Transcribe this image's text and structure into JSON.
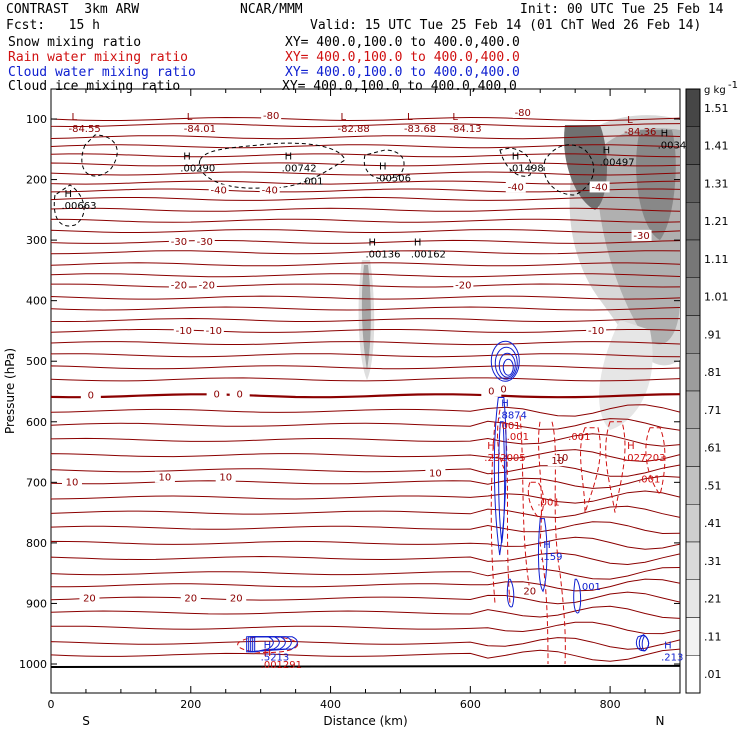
{
  "header": {
    "left": [
      "CONTRAST  3km ARW",
      "Fcst:   15 h"
    ],
    "center": "NCAR/MMM",
    "init": "Init: 00 UTC Tue 25 Feb 14",
    "valid": "Valid: 15 UTC Tue 25 Feb 14 (01 ChT Wed 26 Feb 14)"
  },
  "fields": [
    {
      "name": "Snow mixing ratio",
      "xy": "XY= 400.0,100.0 to 400.0,400.0",
      "color": "#000000"
    },
    {
      "name": "Rain water mixing ratio",
      "xy": "XY= 400.0,100.0 to 400.0,400.0",
      "color": "#d01010"
    },
    {
      "name": "Cloud water mixing ratio",
      "xy": "XY= 400.0,100.0 to 400.0,400.0",
      "color": "#1020d0"
    },
    {
      "name": "Cloud ice mixing ratio",
      "xy": "XY= 400.0,100.0 to 400.0,400.0",
      "color": "#000000"
    }
  ],
  "colorbar": {
    "unit": "g kg",
    "unit_sup": "-1",
    "levels": [
      "1.51",
      "1.41",
      "1.31",
      "1.21",
      "1.11",
      "1.01",
      ".91",
      ".81",
      ".71",
      ".61",
      ".51",
      ".41",
      ".31",
      ".21",
      ".11",
      ".01"
    ]
  },
  "chart_data": {
    "type": "cross-section",
    "xlabel": "Distance (km)",
    "ylabel": "Pressure (hPa)",
    "xlim": [
      0,
      900
    ],
    "ylim": [
      1050,
      50
    ],
    "x_ticks": [
      0,
      200,
      400,
      600,
      800
    ],
    "y_ticks": [
      100,
      200,
      300,
      400,
      500,
      600,
      700,
      800,
      900,
      1000
    ],
    "left_end": "S",
    "right_end": "N",
    "temperature_isotherms": [
      {
        "temp": "-80",
        "label_x": 315,
        "p": 95
      },
      {
        "temp": "-80",
        "label_x": 675,
        "p": 90
      },
      {
        "temp": "-40",
        "label_x": 240,
        "p": 218
      },
      {
        "temp": "-40",
        "label_x": 313,
        "p": 218
      },
      {
        "temp": "-40",
        "label_x": 665,
        "p": 213
      },
      {
        "temp": "-40",
        "label_x": 785,
        "p": 213
      },
      {
        "temp": "-30",
        "label_x": 183,
        "p": 303
      },
      {
        "temp": "-30",
        "label_x": 220,
        "p": 303
      },
      {
        "temp": "-30",
        "label_x": 845,
        "p": 293
      },
      {
        "temp": "-20",
        "label_x": 183,
        "p": 375
      },
      {
        "temp": "-20",
        "label_x": 223,
        "p": 375
      },
      {
        "temp": "-20",
        "label_x": 590,
        "p": 375
      },
      {
        "temp": "-10",
        "label_x": 190,
        "p": 450
      },
      {
        "temp": "-10",
        "label_x": 233,
        "p": 450
      },
      {
        "temp": "-10",
        "label_x": 780,
        "p": 450
      },
      {
        "temp": "0",
        "label_x": 57,
        "p": 557
      },
      {
        "temp": "0",
        "label_x": 237,
        "p": 555
      },
      {
        "temp": "0",
        "label_x": 270,
        "p": 555
      },
      {
        "temp": "0",
        "label_x": 630,
        "p": 550
      },
      {
        "temp": "10",
        "label_x": 30,
        "p": 700
      },
      {
        "temp": "10",
        "label_x": 163,
        "p": 692
      },
      {
        "temp": "10",
        "label_x": 250,
        "p": 692
      },
      {
        "temp": "10",
        "label_x": 550,
        "p": 685
      },
      {
        "temp": "10",
        "label_x": 725,
        "p": 665
      },
      {
        "temp": "20",
        "label_x": 55,
        "p": 892
      },
      {
        "temp": "20",
        "label_x": 200,
        "p": 892
      },
      {
        "temp": "20",
        "label_x": 265,
        "p": 892
      },
      {
        "temp": "20",
        "label_x": 685,
        "p": 880
      }
    ],
    "min_max_labels": [
      {
        "kind": "L",
        "value": "-84.55",
        "x": 25,
        "p": 105,
        "color": "#8b0000"
      },
      {
        "kind": "L",
        "value": "-84.01",
        "x": 190,
        "p": 105,
        "color": "#8b0000"
      },
      {
        "kind": "L",
        "value": "-82.88",
        "x": 410,
        "p": 105,
        "color": "#8b0000"
      },
      {
        "kind": "L",
        "value": "-83.68",
        "x": 505,
        "p": 105,
        "color": "#8b0000"
      },
      {
        "kind": "L",
        "value": "-84.13",
        "x": 570,
        "p": 105,
        "color": "#8b0000"
      },
      {
        "kind": "L",
        "value": "-84.36",
        "x": 820,
        "p": 110,
        "color": "#8b0000"
      },
      {
        "kind": "H",
        "value": ".00290",
        "x": 185,
        "p": 170,
        "color": "#000000"
      },
      {
        "kind": "H",
        "value": ".00742",
        "x": 330,
        "p": 170,
        "color": "#000000"
      },
      {
        "kind": "H",
        "value": ".00506",
        "x": 465,
        "p": 187,
        "color": "#000000"
      },
      {
        "kind": "H",
        "value": ".01498",
        "x": 655,
        "p": 170,
        "color": "#000000"
      },
      {
        "kind": "H",
        "value": ".00497",
        "x": 785,
        "p": 160,
        "color": "#000000"
      },
      {
        "kind": "H",
        "value": ".0034",
        "x": 868,
        "p": 132,
        "color": "#000000"
      },
      {
        "kind": "H",
        "value": ".00663",
        "x": 15,
        "p": 232,
        "color": "#000000"
      },
      {
        "kind": "H",
        "value": ".00136",
        "x": 450,
        "p": 312,
        "color": "#000000"
      },
      {
        "kind": "H",
        "value": ".00162",
        "x": 515,
        "p": 312,
        "color": "#000000"
      },
      {
        "kind": "H",
        "value": ".8874",
        "x": 640,
        "p": 578,
        "color": "#1020d0"
      },
      {
        "kind": "H",
        "value": ".232005",
        "x": 620,
        "p": 648,
        "color": "#d01010"
      },
      {
        "kind": "H",
        "value": ".027203",
        "x": 820,
        "p": 648,
        "color": "#d01010"
      },
      {
        "kind": "H",
        "value": ".159",
        "x": 700,
        "p": 812,
        "color": "#1020d0"
      },
      {
        "kind": "H",
        "value": ".5213",
        "x": 300,
        "p": 978,
        "color": "#1020d0"
      },
      {
        "kind": "H",
        "value": ".001291",
        "x": 300,
        "p": 990,
        "color": "#d01010"
      },
      {
        "kind": "H",
        "value": ".213",
        "x": 873,
        "p": 978,
        "color": "#1020d0"
      }
    ],
    "contour_labels": [
      {
        "text": ".001",
        "x": 358,
        "p": 208,
        "color": "#000000"
      },
      {
        "text": ".001",
        "x": 652,
        "p": 630,
        "color": "#d01010"
      },
      {
        "text": ".001",
        "x": 740,
        "p": 630,
        "color": "#d01010"
      },
      {
        "text": ".001",
        "x": 840,
        "p": 700,
        "color": "#d01010"
      },
      {
        "text": ".001",
        "x": 696,
        "p": 738,
        "color": "#d01010"
      },
      {
        "text": ".001",
        "x": 755,
        "p": 878,
        "color": "#1020d0"
      },
      {
        "text": ".001",
        "x": 640,
        "p": 612,
        "color": "#d01010"
      },
      {
        "text": "10",
        "x": 722,
        "p": 665,
        "color": "#8b0000"
      },
      {
        "text": "0",
        "x": 643,
        "p": 552,
        "color": "#8b0000"
      }
    ]
  }
}
